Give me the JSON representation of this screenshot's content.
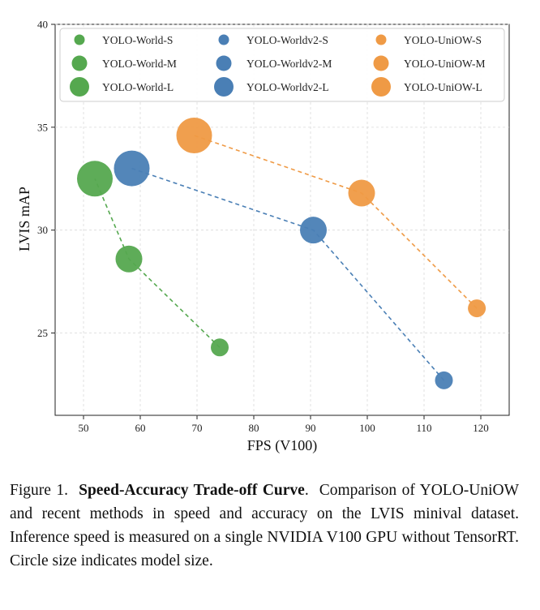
{
  "chart_data": {
    "type": "scatter",
    "xlabel": "FPS (V100)",
    "ylabel": "LVIS mAP",
    "xlim": [
      45,
      125
    ],
    "ylim": [
      21,
      40
    ],
    "x_ticks": [
      50,
      60,
      70,
      80,
      90,
      100,
      110,
      120
    ],
    "y_ticks": [
      25,
      30,
      35,
      40
    ],
    "grid": true,
    "legend_placement": "top",
    "size_meaning": "model size (S, M, L)",
    "series": [
      {
        "family": "YOLO-World",
        "color": "#55a84f",
        "points": [
          {
            "name": "YOLO-World-S",
            "size": "S",
            "x": 74,
            "y": 24.3
          },
          {
            "name": "YOLO-World-M",
            "size": "M",
            "x": 58,
            "y": 28.6
          },
          {
            "name": "YOLO-World-L",
            "size": "L",
            "x": 52,
            "y": 32.5
          }
        ]
      },
      {
        "family": "YOLO-Worldv2",
        "color": "#4a7fb5",
        "points": [
          {
            "name": "YOLO-Worldv2-S",
            "size": "S",
            "x": 113.5,
            "y": 22.7
          },
          {
            "name": "YOLO-Worldv2-M",
            "size": "M",
            "x": 90.5,
            "y": 30.0
          },
          {
            "name": "YOLO-Worldv2-L",
            "size": "L",
            "x": 58.5,
            "y": 33.0
          }
        ]
      },
      {
        "family": "YOLO-UniOW",
        "color": "#ef9a45",
        "points": [
          {
            "name": "YOLO-UniOW-S",
            "size": "S",
            "x": 119.3,
            "y": 26.2
          },
          {
            "name": "YOLO-UniOW-M",
            "size": "M",
            "x": 99,
            "y": 31.8
          },
          {
            "name": "YOLO-UniOW-L",
            "size": "L",
            "x": 69.5,
            "y": 34.6
          }
        ]
      }
    ]
  },
  "caption": {
    "prefix": "Figure 1.",
    "title": "Speed-Accuracy Trade-off Curve",
    "text": "Comparison of YOLO-UniOW and recent methods in speed and accuracy on the LVIS minival dataset. Inference speed is measured on a single NVIDIA V100 GPU without TensorRT. Circle size indicates model size."
  }
}
